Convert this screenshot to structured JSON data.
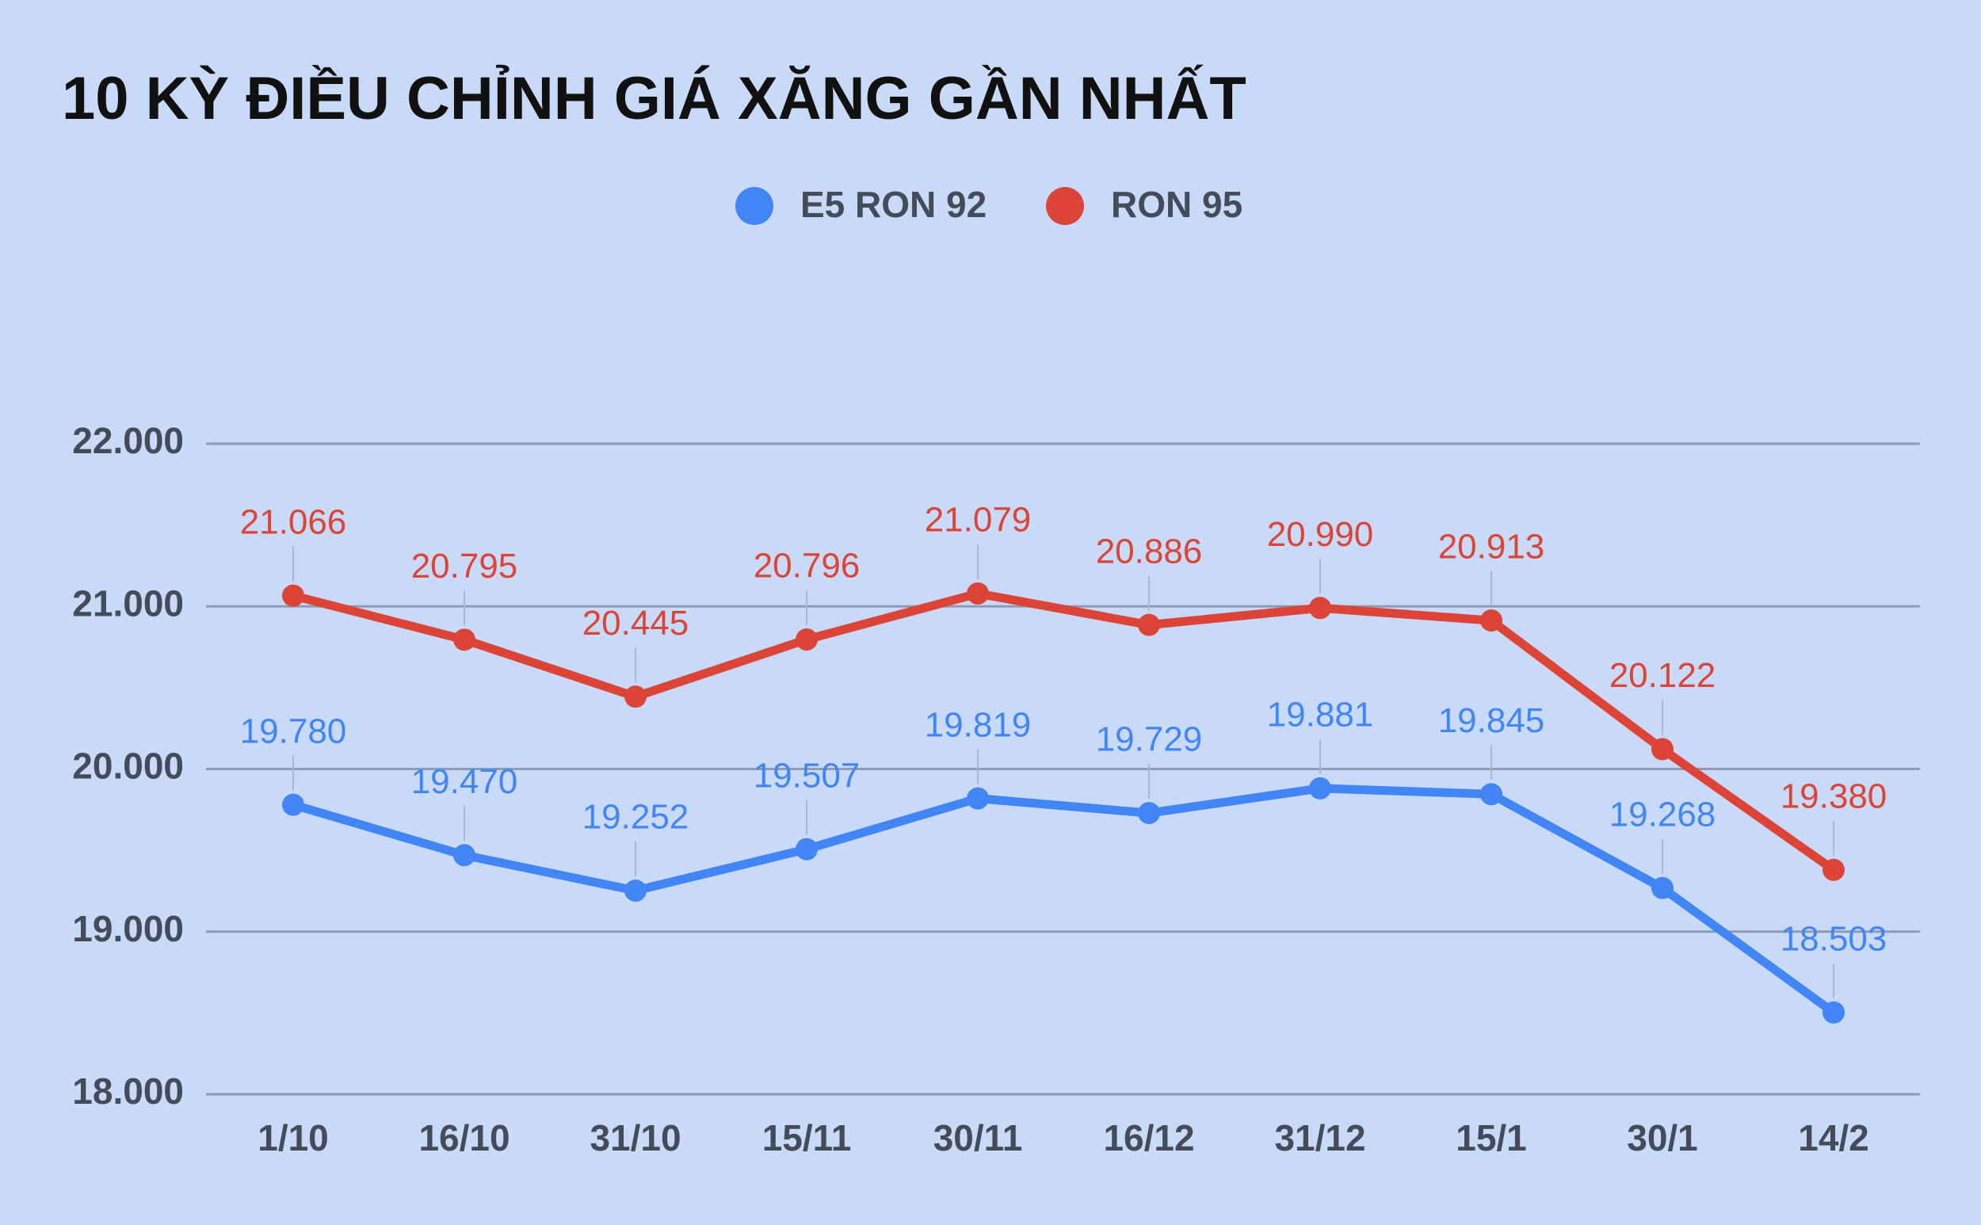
{
  "chart_data": {
    "type": "line",
    "title": "10 KỲ ĐIỀU CHỈNH GIÁ XĂNG GẦN NHẤT",
    "categories": [
      "1/10",
      "16/10",
      "31/10",
      "15/11",
      "30/11",
      "16/12",
      "31/12",
      "15/1",
      "30/1",
      "14/2"
    ],
    "series": [
      {
        "name": "E5 RON 92",
        "color": "#4285f4",
        "values": [
          19780,
          19470,
          19252,
          19507,
          19819,
          19729,
          19881,
          19845,
          19268,
          18503
        ],
        "value_labels": [
          "19.780",
          "19.470",
          "19.252",
          "19.507",
          "19.819",
          "19.729",
          "19.881",
          "19.845",
          "19.268",
          "18.503"
        ]
      },
      {
        "name": "RON 95",
        "color": "#db4437",
        "values": [
          21066,
          20795,
          20445,
          20796,
          21079,
          20886,
          20990,
          20913,
          20122,
          19380
        ],
        "value_labels": [
          "21.066",
          "20.795",
          "20.445",
          "20.796",
          "21.079",
          "20.886",
          "20.990",
          "20.913",
          "20.122",
          "19.380"
        ]
      }
    ],
    "ylim": [
      18000,
      22000
    ],
    "yticks": [
      {
        "value": 18000,
        "label": "18.000"
      },
      {
        "value": 19000,
        "label": "19.000"
      },
      {
        "value": 20000,
        "label": "20.000"
      },
      {
        "value": 21000,
        "label": "21.000"
      },
      {
        "value": 22000,
        "label": "22.000"
      }
    ],
    "grid": true
  }
}
